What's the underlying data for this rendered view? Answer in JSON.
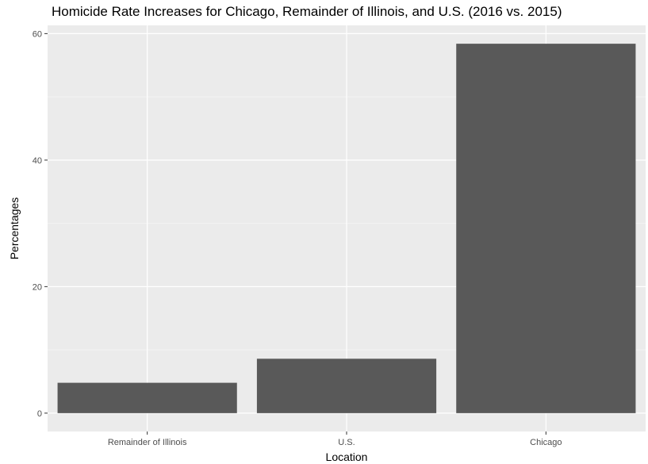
{
  "chart_data": {
    "type": "bar",
    "title": "Homicide Rate Increases for Chicago, Remainder of Illinois, and U.S. (2016 vs. 2015)",
    "xlabel": "Location",
    "ylabel": "Percentages",
    "categories": [
      "Remainder of Illinois",
      "U.S.",
      "Chicago"
    ],
    "values": [
      4.8,
      8.6,
      58.4
    ],
    "ylim": [
      -2.9,
      61.3
    ],
    "yticks": [
      0,
      20,
      40,
      60
    ],
    "grid": true,
    "legend": "none",
    "colors": {
      "bar": "#595959",
      "panel": "#ebebeb",
      "grid_major": "#ffffff",
      "grid_minor": "#f5f5f5",
      "tick": "#333333"
    }
  }
}
